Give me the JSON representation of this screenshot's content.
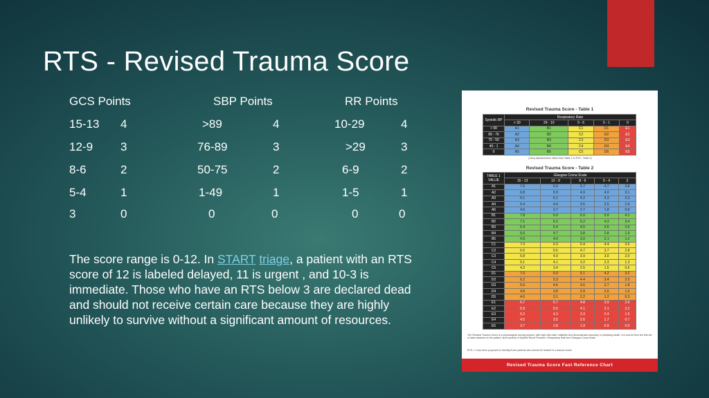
{
  "slide": {
    "title": "RTS - Revised Trauma Score",
    "accent_color": "#c0282a"
  },
  "table": {
    "headers": {
      "gcs": "GCS Points",
      "sbp": "SBP Points",
      "rr": "RR  Points"
    },
    "rows": [
      {
        "gcs": "15-13",
        "gcs_pts": "4",
        "sbp": ">89",
        "sbp_pts": "4",
        "rr": "10-29",
        "rr_pts": "4"
      },
      {
        "gcs": "12-9",
        "gcs_pts": "3",
        "sbp": "76-89",
        "sbp_pts": "3",
        "rr": ">29",
        "rr_pts": "3"
      },
      {
        "gcs": "8-6",
        "gcs_pts": "2",
        "sbp": "50-75",
        "sbp_pts": "2",
        "rr": "6-9",
        "rr_pts": "2"
      },
      {
        "gcs": "5-4",
        "gcs_pts": "1",
        "sbp": "1-49",
        "sbp_pts": "1",
        "rr": "1-5",
        "rr_pts": "1"
      },
      {
        "gcs": "3",
        "gcs_pts": "0",
        "sbp": "0",
        "sbp_pts": "0",
        "rr": "0",
        "rr_pts": "0"
      }
    ]
  },
  "body": {
    "before": "The score range is 0-12. In ",
    "link1": "START",
    "between": " ",
    "link2": "triage",
    "after": ", a patient with an RTS score of 12 is labeled delayed, 11 is urgent , and 10-3 is immediate. Those who have an RTS below 3 are declared dead and should not receive certain care because they are highly unlikely to survive without a significant amount of resources.",
    "link_color": "#7fd1e8"
  },
  "reference_chart": {
    "table1_title": "Revised Trauma Score - Table 1",
    "table1_col_header": "Respiratory Rate",
    "table1_row_header": "Systolic BP",
    "table1_cols": [
      "> 30",
      "29 - 10",
      "9 - 6",
      "5 - 1",
      "0"
    ],
    "table1_rows": [
      {
        "label": "> 90",
        "cells": [
          "A1",
          "B1",
          "C1",
          "D1",
          "E1"
        ]
      },
      {
        "label": "89 - 76",
        "cells": [
          "A2",
          "B2",
          "C2",
          "D2",
          "E2"
        ]
      },
      {
        "label": "75 - 50",
        "cells": [
          "A3",
          "B3",
          "C3",
          "D3",
          "E3"
        ]
      },
      {
        "label": "49 - 1",
        "cells": [
          "A4",
          "B4",
          "C4",
          "D4",
          "E4"
        ]
      },
      {
        "label": "0",
        "cells": [
          "A5",
          "B5",
          "C5",
          "D5",
          "E5"
        ]
      }
    ],
    "table1_note": "(Carry Alphanumeric Value from Table 1 to RTS - Table 2)",
    "table2_title": "Revised Trauma Score - Table 2",
    "table2_row_header": "TABLE 1 VALUE",
    "table2_col_header": "Glasgow Coma Scale",
    "table2_cols": [
      "15 - 13",
      "12 - 9",
      "8 - 6",
      "5 - 4",
      "3"
    ],
    "table2_rows": [
      {
        "label": "A1",
        "cells": [
          "7.6",
          "6.6",
          "5.7",
          "4.7",
          "3.8"
        ]
      },
      {
        "label": "A2",
        "cells": [
          "6.8",
          "5.9",
          "4.9",
          "4.0",
          "3.1"
        ]
      },
      {
        "label": "A3",
        "cells": [
          "6.1",
          "5.1",
          "4.2",
          "3.3",
          "2.3"
        ]
      },
      {
        "label": "A4",
        "cells": [
          "5.4",
          "4.4",
          "3.5",
          "2.5",
          "1.6"
        ]
      },
      {
        "label": "A5",
        "cells": [
          "4.6",
          "3.7",
          "2.7",
          "1.8",
          "0.9"
        ]
      },
      {
        "label": "B1",
        "cells": [
          "7.8",
          "6.9",
          "6.0",
          "5.0",
          "4.1"
        ]
      },
      {
        "label": "B2",
        "cells": [
          "7.1",
          "6.2",
          "5.2",
          "4.3",
          "3.4"
        ]
      },
      {
        "label": "B3",
        "cells": [
          "6.4",
          "5.4",
          "4.5",
          "3.6",
          "2.6"
        ]
      },
      {
        "label": "B4",
        "cells": [
          "5.6",
          "4.7",
          "3.8",
          "2.8",
          "1.9"
        ]
      },
      {
        "label": "B5",
        "cells": [
          "4.9",
          "4.0",
          "3.0",
          "2.1",
          "1.2"
        ]
      },
      {
        "label": "C1",
        "cells": [
          "7.3",
          "6.3",
          "5.4",
          "4.4",
          "3.5"
        ]
      },
      {
        "label": "C2",
        "cells": [
          "6.5",
          "5.6",
          "4.7",
          "3.7",
          "2.8"
        ]
      },
      {
        "label": "C3",
        "cells": [
          "5.8",
          "4.9",
          "3.9",
          "3.0",
          "2.0"
        ]
      },
      {
        "label": "C4",
        "cells": [
          "5.1",
          "4.1",
          "3.2",
          "2.3",
          "1.3"
        ]
      },
      {
        "label": "C5",
        "cells": [
          "4.3",
          "3.4",
          "2.5",
          "1.5",
          "0.6"
        ]
      },
      {
        "label": "D1",
        "cells": [
          "7.0",
          "6.0",
          "5.1",
          "4.2",
          "3.2"
        ]
      },
      {
        "label": "D2",
        "cells": [
          "6.2",
          "5.3",
          "4.4",
          "3.4",
          "2.5"
        ]
      },
      {
        "label": "D3",
        "cells": [
          "5.5",
          "4.6",
          "3.6",
          "2.7",
          "1.8"
        ]
      },
      {
        "label": "D4",
        "cells": [
          "4.8",
          "3.8",
          "2.9",
          "2.0",
          "1.0"
        ]
      },
      {
        "label": "D5",
        "cells": [
          "4.0",
          "3.1",
          "2.2",
          "1.2",
          "0.3"
        ]
      },
      {
        "label": "E1",
        "cells": [
          "6.7",
          "5.7",
          "4.8",
          "3.9",
          "2.9"
        ]
      },
      {
        "label": "E2",
        "cells": [
          "5.9",
          "5.0",
          "4.1",
          "3.1",
          "2.2"
        ]
      },
      {
        "label": "E3",
        "cells": [
          "5.2",
          "4.3",
          "3.3",
          "2.4",
          "1.5"
        ]
      },
      {
        "label": "E4",
        "cells": [
          "4.5",
          "3.5",
          "2.6",
          "1.7",
          "0.7"
        ]
      },
      {
        "label": "E5",
        "cells": [
          "3.7",
          "2.8",
          "1.9",
          "0.9",
          "0.0"
        ]
      }
    ],
    "footnote1": "The Revised Trauma Score is a physiological scoring system, with high inter-rater reliability and demonstrated accuracy in predicting death. It is scored from the first set of data obtained on the patient, and consists of Systolic Blood Pressure, Respiratory Rate and Glasgow Coma Scale.",
    "footnote2": "RTS < 4 has been proposed to identify those patients who should be treated in a trauma center",
    "banner": "Revised Trauma Score Fast Reference Chart"
  }
}
